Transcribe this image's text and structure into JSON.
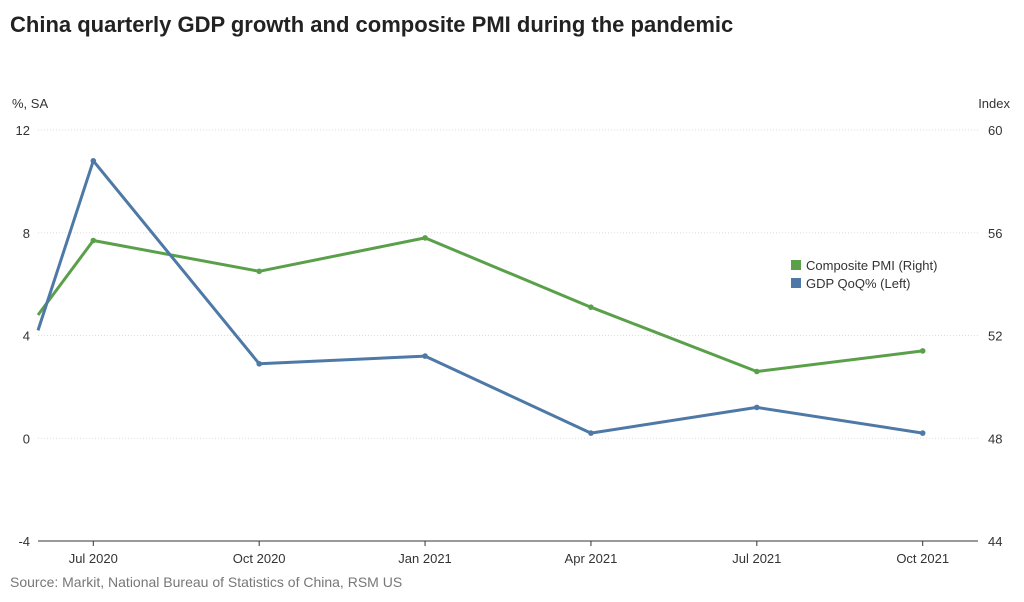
{
  "title": "China quarterly GDP growth and composite PMI during the pandemic",
  "source": "Source: Markit, National Bureau of Statistics of China, RSM US",
  "chart_data": {
    "type": "line",
    "title": "China quarterly GDP growth and composite PMI during the pandemic",
    "left_axis_unit": "%, SA",
    "right_axis_unit": "Index",
    "x_start": "Jun 2020",
    "x_end": "Nov 2021",
    "x_ticks": [
      "Jul 2020",
      "Oct 2020",
      "Jan 2021",
      "Apr 2021",
      "Jul 2021",
      "Oct 2021"
    ],
    "left_ylim": [
      -4,
      12
    ],
    "left_ticks": [
      12,
      8,
      4,
      0,
      -4
    ],
    "right_ylim": [
      44,
      60
    ],
    "right_ticks": [
      60,
      56,
      52,
      48,
      44
    ],
    "grid": true,
    "legend_position": "right",
    "series": [
      {
        "name": "Composite PMI (Right)",
        "axis": "right",
        "color": "#5aa04a",
        "x": [
          "Jun 2020",
          "Jul 2020",
          "Oct 2020",
          "Jan 2021",
          "Apr 2021",
          "Jul 2021",
          "Oct 2021"
        ],
        "values": [
          52.8,
          55.7,
          54.5,
          55.8,
          53.1,
          50.6,
          51.4
        ]
      },
      {
        "name": "GDP QoQ% (Left)",
        "axis": "left",
        "color": "#4e79a7",
        "x": [
          "Jun 2020",
          "Jul 2020",
          "Oct 2020",
          "Jan 2021",
          "Apr 2021",
          "Jul 2021",
          "Oct 2021"
        ],
        "values": [
          4.2,
          10.8,
          2.9,
          3.2,
          0.2,
          1.2,
          0.2
        ]
      }
    ]
  }
}
